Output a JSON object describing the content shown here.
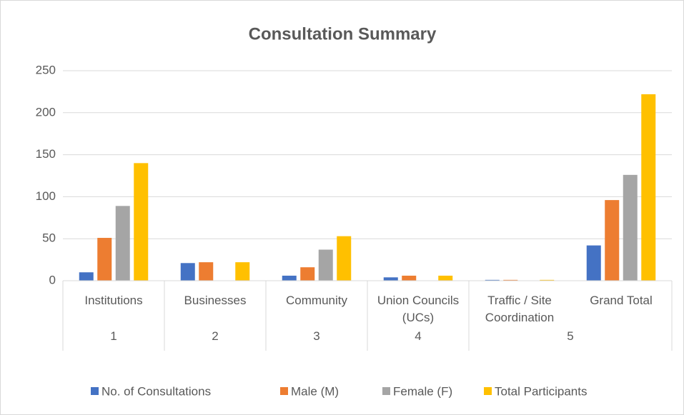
{
  "chart_data": {
    "type": "bar",
    "title": "Consultation Summary",
    "categories": [
      "Institutions",
      "Businesses",
      "Community",
      "Union Councils (UCs)",
      "Traffic / Site Coordination",
      "Grand Total"
    ],
    "groups": [
      {
        "label": "1",
        "span": 1
      },
      {
        "label": "2",
        "span": 1
      },
      {
        "label": "3",
        "span": 1
      },
      {
        "label": "4",
        "span": 1
      },
      {
        "label": "5",
        "span": 2
      }
    ],
    "series": [
      {
        "name": "No. of Consultations",
        "color": "#4472c4",
        "values": [
          10,
          21,
          6,
          4,
          1,
          42
        ]
      },
      {
        "name": "Male (M)",
        "color": "#ed7d31",
        "values": [
          51,
          22,
          16,
          6,
          1,
          96
        ]
      },
      {
        "name": "Female (F)",
        "color": "#a5a5a5",
        "values": [
          89,
          0,
          37,
          0,
          0,
          126
        ]
      },
      {
        "name": "Total Participants",
        "color": "#ffc000",
        "values": [
          140,
          22,
          53,
          6,
          1,
          222
        ]
      }
    ],
    "ylim": [
      0,
      250
    ],
    "yticks": [
      0,
      50,
      100,
      150,
      200,
      250
    ],
    "grid": true,
    "legend": "bottom"
  }
}
